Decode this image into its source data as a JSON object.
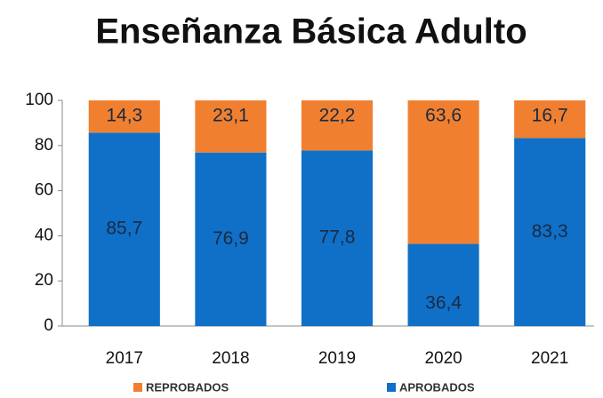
{
  "chart_data": {
    "type": "stacked_bar",
    "title": "Enseñanza Básica Adulto",
    "categories": [
      "2017",
      "2018",
      "2019",
      "2020",
      "2021"
    ],
    "series": [
      {
        "name": "APROBADOS",
        "color": "#1070c8",
        "values": [
          85.7,
          76.9,
          77.8,
          36.4,
          83.3
        ],
        "value_labels": [
          "85,7",
          "76,9",
          "77,8",
          "36,4",
          "83,3"
        ]
      },
      {
        "name": "REPROBADOS",
        "color": "#f08030",
        "values": [
          14.3,
          23.1,
          22.2,
          63.6,
          16.7
        ],
        "value_labels": [
          "14,3",
          "23,1",
          "22,2",
          "63,6",
          "16,7"
        ]
      }
    ],
    "ylim": [
      0,
      100
    ],
    "yticks": [
      0,
      20,
      40,
      60,
      80,
      100
    ],
    "grid": false
  }
}
